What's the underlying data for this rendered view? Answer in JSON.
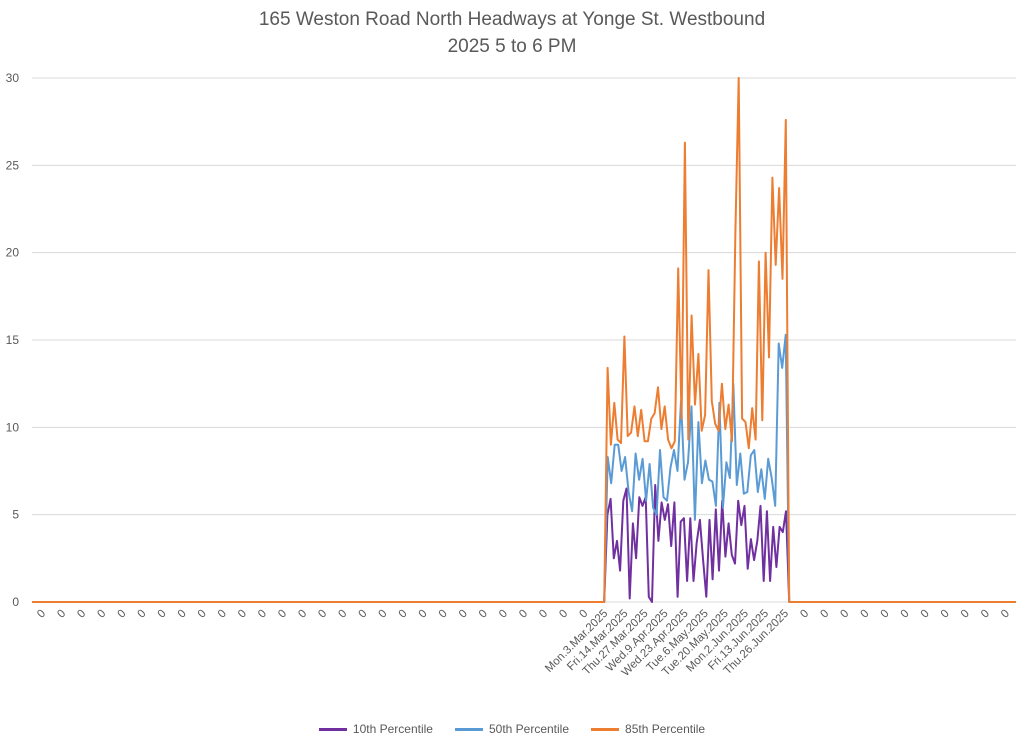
{
  "chart_data": {
    "type": "line",
    "title": "165 Weston Road North Headways at Yonge St. Westbound",
    "subtitle": "2025 5 to 6 PM",
    "xlabel": "",
    "ylabel": "",
    "ylim": [
      0,
      30
    ],
    "yticks": [
      0,
      5,
      10,
      15,
      20,
      25,
      30
    ],
    "grid": true,
    "legend_position": "bottom",
    "x_tick_labels": [
      "0",
      "0",
      "0",
      "0",
      "0",
      "0",
      "0",
      "0",
      "0",
      "0",
      "0",
      "0",
      "0",
      "0",
      "0",
      "0",
      "0",
      "0",
      "0",
      "0",
      "0",
      "0",
      "0",
      "0",
      "0",
      "0",
      "0",
      "0",
      "Mon.3.Mar.2025",
      "Fri.14.Mar.2025",
      "Thu.27.Mar.2025",
      "Wed.9.Apr.2025",
      "Wed.23.Apr.2025",
      "Tue.6.May.2025",
      "Tue.20.May.2025",
      "Mon.2.Jun.2025",
      "Fri.13.Jun.2025",
      "Thu.26.Jun.2025",
      "0",
      "0",
      "0",
      "0",
      "0",
      "0",
      "0",
      "0",
      "0",
      "0",
      "0"
    ],
    "x_tick_count": 49,
    "data_start_fraction": 0.5815,
    "data_end_fraction": 0.7695,
    "series": [
      {
        "name": "10th Percentile",
        "color": "#7030a0",
        "values": [
          0,
          5,
          5.9,
          2.5,
          3.5,
          1.8,
          5.8,
          6.5,
          0.2,
          4.5,
          2.5,
          6,
          5.5,
          6,
          0.3,
          0,
          6.7,
          3.5,
          5.7,
          4.7,
          5.6,
          3.2,
          5.7,
          0.3,
          4.6,
          4.8,
          1.2,
          4.8,
          1.2,
          3.4,
          4.7,
          2.4,
          0.3,
          4.7,
          1.3,
          5.3,
          1.8,
          5.8,
          2.6,
          4.5,
          2.7,
          2.2,
          5.8,
          4.4,
          5.5,
          1.9,
          3.6,
          2.4,
          3.5,
          5.5,
          1.2,
          5.2,
          1.2,
          4.3,
          2,
          4.3,
          4,
          5.2,
          0
        ]
      },
      {
        "name": "50th Percentile",
        "color": "#5b9bd5",
        "values": [
          0,
          8.3,
          6.8,
          9,
          9,
          7.5,
          8.3,
          6.3,
          5.2,
          8.5,
          7,
          8.2,
          5.8,
          7.9,
          5.4,
          5,
          8.7,
          6,
          5.8,
          7.7,
          8.7,
          7.5,
          11.5,
          7,
          8,
          11.2,
          4.7,
          10.3,
          6.8,
          8.1,
          7,
          6.9,
          5.5,
          11.4,
          5.4,
          8,
          7.1,
          12.5,
          6.7,
          8.5,
          6.2,
          6.3,
          8.4,
          8.7,
          6.3,
          7.6,
          5.9,
          8.2,
          7.1,
          5.5,
          14.8,
          13.4,
          15.3,
          0
        ]
      },
      {
        "name": "85th Percentile",
        "color": "#ed7d31",
        "values": [
          0,
          13.4,
          9,
          11.4,
          9.3,
          9.1,
          15.2,
          9.5,
          9.7,
          11.2,
          9.5,
          11,
          9.2,
          9.2,
          10.5,
          10.8,
          12.3,
          9.9,
          11.2,
          9.3,
          8.8,
          9.2,
          19.1,
          10.5,
          26.3,
          9.3,
          16.4,
          11.3,
          14.2,
          9.8,
          10.7,
          19,
          11.5,
          10.2,
          9.8,
          12.5,
          9.9,
          11.3,
          9.2,
          21.2,
          30,
          10.5,
          10.3,
          8.8,
          11.1,
          9.3,
          19.5,
          10.4,
          20,
          14,
          24.3,
          19.3,
          23.7,
          18.5,
          27.6,
          0
        ]
      }
    ]
  }
}
